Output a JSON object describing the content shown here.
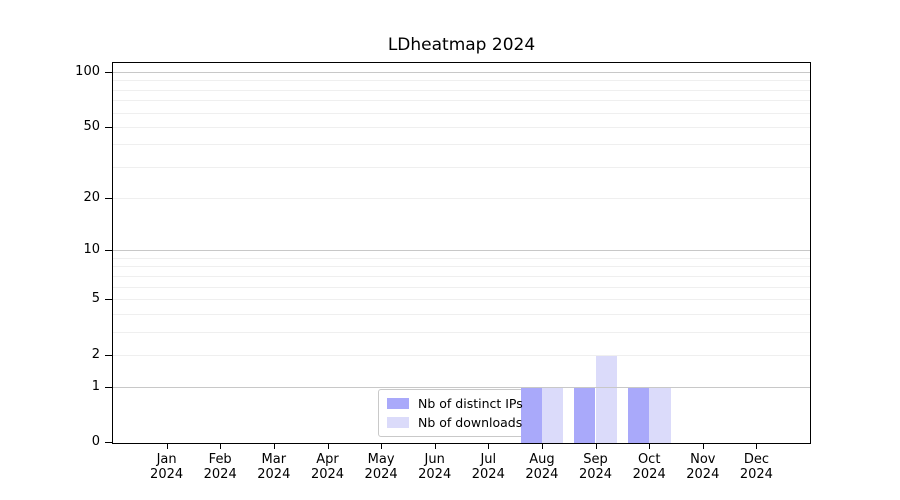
{
  "title": "LDheatmap 2024",
  "chart_data": {
    "type": "bar",
    "title": "LDheatmap 2024",
    "x_categories": [
      "Jan",
      "Feb",
      "Mar",
      "Apr",
      "May",
      "Jun",
      "Jul",
      "Aug",
      "Sep",
      "Oct",
      "Nov",
      "Dec"
    ],
    "x_sublabel": "2024",
    "series": [
      {
        "name": "Nb of distinct IPs",
        "color": "#a9a9fa",
        "values": [
          0,
          0,
          0,
          0,
          0,
          0,
          0,
          1,
          1,
          1,
          0,
          0
        ]
      },
      {
        "name": "Nb of downloads",
        "color": "#dbdbfa",
        "values": [
          0,
          0,
          0,
          0,
          0,
          0,
          0,
          1,
          2,
          1,
          0,
          0
        ]
      }
    ],
    "yscale": "log1p",
    "ylim": [
      0,
      112
    ],
    "y_tick_values": [
      0,
      1,
      2,
      5,
      10,
      20,
      50,
      100
    ],
    "grid": {
      "major_values": [
        1,
        10,
        100
      ],
      "minor_values": [
        2,
        3,
        4,
        5,
        6,
        7,
        8,
        9,
        20,
        30,
        40,
        50,
        60,
        70,
        80,
        90
      ],
      "major_color": "#c8c8c8",
      "minor_color": "#efefef"
    },
    "legend": {
      "location": "lower center"
    },
    "axis_color": "#000000",
    "background": "#ffffff"
  }
}
